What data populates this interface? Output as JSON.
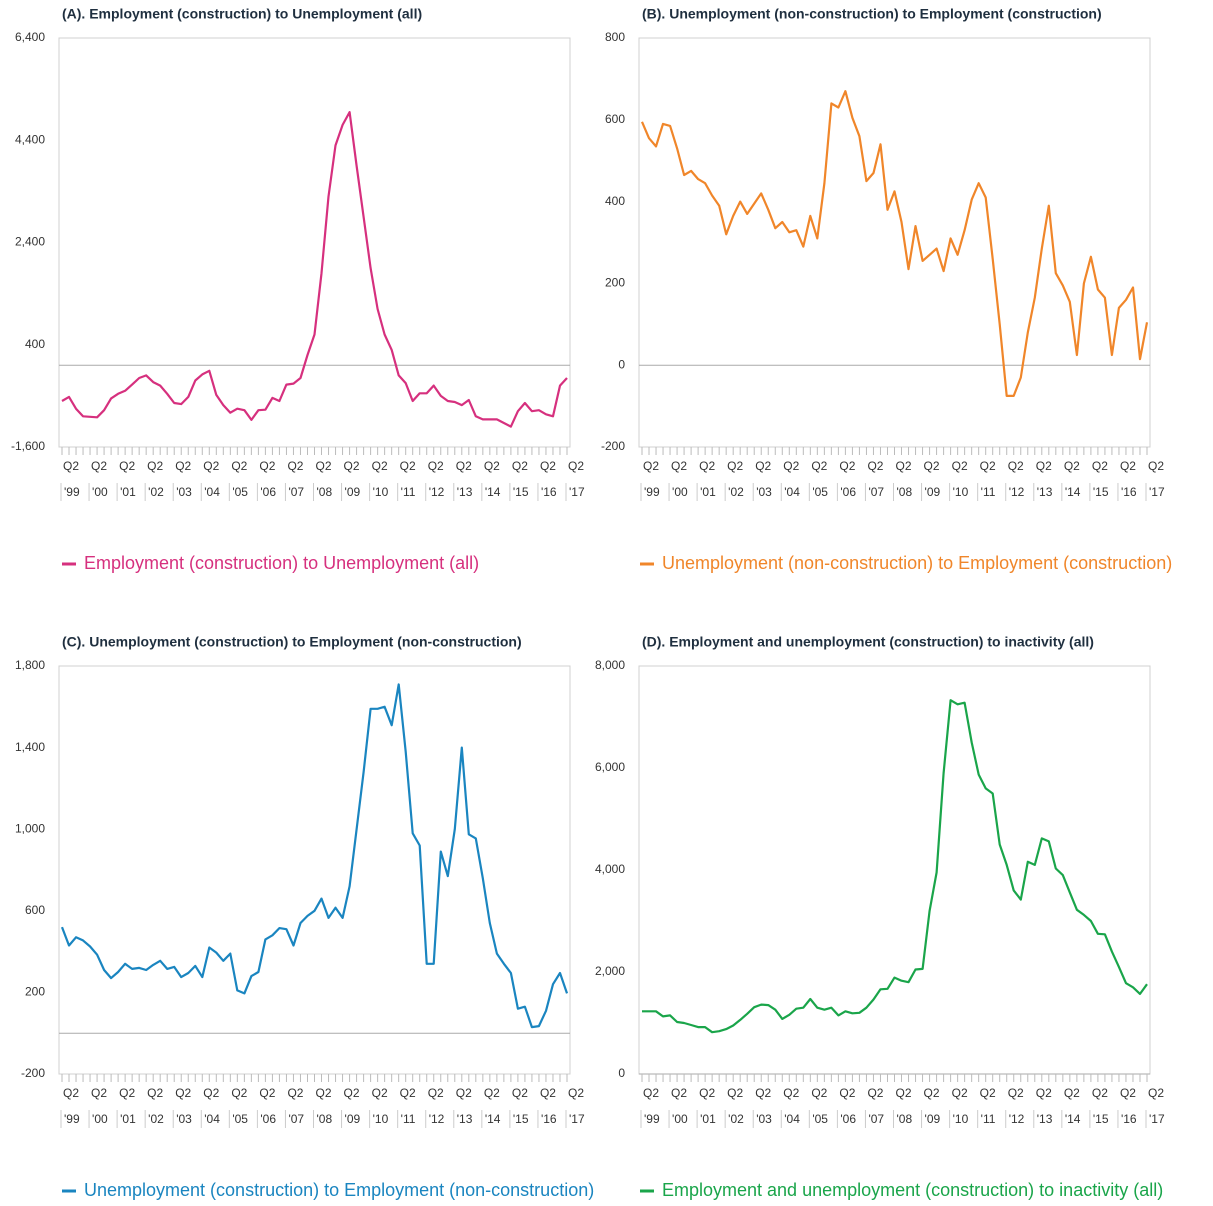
{
  "chart_data": [
    {
      "type": "line",
      "title": "(A). Employment (construction) to Unemployment (all)",
      "categories": [
        "Q2",
        null,
        null,
        null,
        "Q2",
        null,
        null,
        null,
        "Q2",
        null,
        null,
        null,
        "Q2",
        null,
        null,
        null,
        "Q2",
        null,
        null,
        null,
        "Q2",
        null,
        null,
        null,
        "Q2",
        null,
        null,
        null,
        "Q2",
        null,
        null,
        null,
        "Q2",
        null,
        null,
        null,
        "Q2",
        null,
        null,
        null,
        "Q2",
        null,
        null,
        null,
        "Q2",
        null,
        null,
        null,
        "Q2",
        null,
        null,
        null,
        "Q2",
        null,
        null,
        null,
        "Q2",
        null,
        null,
        null,
        "Q2",
        null,
        null,
        null,
        "Q2",
        null,
        null,
        null,
        "Q2",
        null,
        null,
        null,
        "Q2"
      ],
      "category_groups": [
        "'99",
        null,
        null,
        null,
        "'00",
        null,
        null,
        null,
        "'01",
        null,
        null,
        null,
        "'02",
        null,
        null,
        null,
        "'03",
        null,
        null,
        null,
        "'04",
        null,
        null,
        null,
        "'05",
        null,
        null,
        null,
        "'06",
        null,
        null,
        null,
        "'07",
        null,
        null,
        null,
        "'08",
        null,
        null,
        null,
        "'09",
        null,
        null,
        null,
        "'10",
        null,
        null,
        null,
        "'11",
        null,
        null,
        null,
        "'12",
        null,
        null,
        null,
        "'13",
        null,
        null,
        null,
        "'14",
        null,
        null,
        null,
        "'15",
        null,
        null,
        null,
        "'16",
        null,
        null,
        null,
        "'17"
      ],
      "series": [
        {
          "name": "Employment (construction) to Unemployment (all)",
          "color": "#d6307e",
          "values": [
            -700,
            -620,
            -850,
            -1000,
            -1010,
            -1020,
            -880,
            -650,
            -560,
            -500,
            -380,
            -250,
            -200,
            -330,
            -400,
            -560,
            -740,
            -760,
            -620,
            -300,
            -180,
            -110,
            -580,
            -780,
            -930,
            -850,
            -880,
            -1070,
            -880,
            -870,
            -640,
            -700,
            -380,
            -360,
            -250,
            200,
            600,
            1800,
            3300,
            4300,
            4700,
            4950,
            3900,
            2900,
            1900,
            1100,
            600,
            300,
            -200,
            -350,
            -700,
            -550,
            -550,
            -400,
            -600,
            -700,
            -720,
            -780,
            -680,
            -1000,
            -1060,
            -1060,
            -1060,
            -1130,
            -1200,
            -900,
            -740,
            -900,
            -880,
            -960,
            -1000,
            -400,
            -250
          ]
        }
      ],
      "ylim": [
        -1600,
        6400
      ],
      "yticks": [
        {
          "value": -1600,
          "label": "-1,600"
        },
        400,
        {
          "value": 2400,
          "label": "2,400"
        },
        {
          "value": 4400,
          "label": "4,400"
        },
        {
          "value": 6400,
          "label": "6,400"
        }
      ],
      "grid": false
    },
    {
      "type": "line",
      "title": "(B). Unemployment (non-construction) to Employment (construction)",
      "categories": [
        "Q2",
        null,
        null,
        null,
        "Q2",
        null,
        null,
        null,
        "Q2",
        null,
        null,
        null,
        "Q2",
        null,
        null,
        null,
        "Q2",
        null,
        null,
        null,
        "Q2",
        null,
        null,
        null,
        "Q2",
        null,
        null,
        null,
        "Q2",
        null,
        null,
        null,
        "Q2",
        null,
        null,
        null,
        "Q2",
        null,
        null,
        null,
        "Q2",
        null,
        null,
        null,
        "Q2",
        null,
        null,
        null,
        "Q2",
        null,
        null,
        null,
        "Q2",
        null,
        null,
        null,
        "Q2",
        null,
        null,
        null,
        "Q2",
        null,
        null,
        null,
        "Q2",
        null,
        null,
        null,
        "Q2",
        null,
        null,
        null,
        "Q2"
      ],
      "category_groups": [
        "'99",
        null,
        null,
        null,
        "'00",
        null,
        null,
        null,
        "'01",
        null,
        null,
        null,
        "'02",
        null,
        null,
        null,
        "'03",
        null,
        null,
        null,
        "'04",
        null,
        null,
        null,
        "'05",
        null,
        null,
        null,
        "'06",
        null,
        null,
        null,
        "'07",
        null,
        null,
        null,
        "'08",
        null,
        null,
        null,
        "'09",
        null,
        null,
        null,
        "'10",
        null,
        null,
        null,
        "'11",
        null,
        null,
        null,
        "'12",
        null,
        null,
        null,
        "'13",
        null,
        null,
        null,
        "'14",
        null,
        null,
        null,
        "'15",
        null,
        null,
        null,
        "'16",
        null,
        null,
        null,
        "'17"
      ],
      "series": [
        {
          "name": "Unemployment (non-construction) to Employment (construction)",
          "color": "#f0862a",
          "values": [
            595,
            555,
            535,
            590,
            585,
            530,
            465,
            475,
            455,
            445,
            415,
            390,
            320,
            365,
            400,
            370,
            395,
            420,
            380,
            335,
            350,
            325,
            330,
            290,
            365,
            310,
            445,
            640,
            630,
            670,
            605,
            560,
            450,
            470,
            540,
            380,
            425,
            350,
            235,
            340,
            255,
            270,
            285,
            230,
            310,
            270,
            330,
            405,
            445,
            410,
            260,
            100,
            -75,
            -75,
            -30,
            80,
            165,
            285,
            390,
            225,
            195,
            155,
            25,
            200,
            265,
            185,
            165,
            25,
            140,
            160,
            190,
            15,
            105
          ]
        }
      ],
      "ylim": [
        -200,
        800
      ],
      "yticks": [
        -200,
        0,
        200,
        400,
        600,
        800
      ],
      "grid": false
    },
    {
      "type": "line",
      "title": "(C). Unemployment (construction) to Employment (non-construction)",
      "categories": [
        "Q2",
        null,
        null,
        null,
        "Q2",
        null,
        null,
        null,
        "Q2",
        null,
        null,
        null,
        "Q2",
        null,
        null,
        null,
        "Q2",
        null,
        null,
        null,
        "Q2",
        null,
        null,
        null,
        "Q2",
        null,
        null,
        null,
        "Q2",
        null,
        null,
        null,
        "Q2",
        null,
        null,
        null,
        "Q2",
        null,
        null,
        null,
        "Q2",
        null,
        null,
        null,
        "Q2",
        null,
        null,
        null,
        "Q2",
        null,
        null,
        null,
        "Q2",
        null,
        null,
        null,
        "Q2",
        null,
        null,
        null,
        "Q2",
        null,
        null,
        null,
        "Q2",
        null,
        null,
        null,
        "Q2",
        null,
        null,
        null,
        "Q2"
      ],
      "category_groups": [
        "'99",
        null,
        null,
        null,
        "'00",
        null,
        null,
        null,
        "'01",
        null,
        null,
        null,
        "'02",
        null,
        null,
        null,
        "'03",
        null,
        null,
        null,
        "'04",
        null,
        null,
        null,
        "'05",
        null,
        null,
        null,
        "'06",
        null,
        null,
        null,
        "'07",
        null,
        null,
        null,
        "'08",
        null,
        null,
        null,
        "'09",
        null,
        null,
        null,
        "'10",
        null,
        null,
        null,
        "'11",
        null,
        null,
        null,
        "'12",
        null,
        null,
        null,
        "'13",
        null,
        null,
        null,
        "'14",
        null,
        null,
        null,
        "'15",
        null,
        null,
        null,
        "'16",
        null,
        null,
        null,
        "'17"
      ],
      "series": [
        {
          "name": "Unemployment (construction) to Employment (non-construction)",
          "color": "#1a85c0",
          "values": [
            520,
            430,
            470,
            455,
            425,
            385,
            310,
            270,
            300,
            340,
            315,
            320,
            310,
            335,
            355,
            315,
            325,
            275,
            295,
            330,
            275,
            420,
            395,
            355,
            390,
            210,
            195,
            280,
            300,
            460,
            480,
            515,
            510,
            430,
            540,
            575,
            600,
            660,
            565,
            615,
            565,
            720,
            1000,
            1280,
            1590,
            1590,
            1600,
            1510,
            1710,
            1380,
            980,
            920,
            340,
            340,
            890,
            770,
            1000,
            1400,
            975,
            955,
            760,
            540,
            390,
            340,
            295,
            120,
            130,
            30,
            35,
            110,
            240,
            295,
            195
          ]
        }
      ],
      "ylim": [
        -200,
        1800
      ],
      "yticks": [
        -200,
        200,
        600,
        {
          "value": 1000,
          "label": "1,000"
        },
        {
          "value": 1400,
          "label": "1,400"
        },
        {
          "value": 1800,
          "label": "1,800"
        }
      ],
      "grid": false
    },
    {
      "type": "line",
      "title": "(D). Employment and unemployment (construction) to inactivity (all)",
      "categories": [
        "Q2",
        null,
        null,
        null,
        "Q2",
        null,
        null,
        null,
        "Q2",
        null,
        null,
        null,
        "Q2",
        null,
        null,
        null,
        "Q2",
        null,
        null,
        null,
        "Q2",
        null,
        null,
        null,
        "Q2",
        null,
        null,
        null,
        "Q2",
        null,
        null,
        null,
        "Q2",
        null,
        null,
        null,
        "Q2",
        null,
        null,
        null,
        "Q2",
        null,
        null,
        null,
        "Q2",
        null,
        null,
        null,
        "Q2",
        null,
        null,
        null,
        "Q2",
        null,
        null,
        null,
        "Q2",
        null,
        null,
        null,
        "Q2",
        null,
        null,
        null,
        "Q2",
        null,
        null,
        null,
        "Q2",
        null,
        null,
        null,
        "Q2"
      ],
      "category_groups": [
        "'99",
        null,
        null,
        null,
        "'00",
        null,
        null,
        null,
        "'01",
        null,
        null,
        null,
        "'02",
        null,
        null,
        null,
        "'03",
        null,
        null,
        null,
        "'04",
        null,
        null,
        null,
        "'05",
        null,
        null,
        null,
        "'06",
        null,
        null,
        null,
        "'07",
        null,
        null,
        null,
        "'08",
        null,
        null,
        null,
        "'09",
        null,
        null,
        null,
        "'10",
        null,
        null,
        null,
        "'11",
        null,
        null,
        null,
        "'12",
        null,
        null,
        null,
        "'13",
        null,
        null,
        null,
        "'14",
        null,
        null,
        null,
        "'15",
        null,
        null,
        null,
        "'16",
        null,
        null,
        null,
        "'17"
      ],
      "series": [
        {
          "name": "Employment and unemployment (construction) to inactivity (all)",
          "color": "#1aa54a",
          "values": [
            1230,
            1230,
            1230,
            1130,
            1150,
            1020,
            1000,
            960,
            920,
            920,
            820,
            840,
            880,
            950,
            1060,
            1180,
            1310,
            1360,
            1350,
            1260,
            1080,
            1160,
            1280,
            1300,
            1470,
            1300,
            1260,
            1300,
            1150,
            1230,
            1190,
            1200,
            1300,
            1460,
            1660,
            1670,
            1890,
            1830,
            1800,
            2050,
            2060,
            3200,
            3950,
            5900,
            7330,
            7250,
            7280,
            6500,
            5870,
            5600,
            5500,
            4500,
            4100,
            3600,
            3420,
            4160,
            4100,
            4620,
            4560,
            4030,
            3900,
            3560,
            3220,
            3120,
            3000,
            2750,
            2740,
            2400,
            2100,
            1780,
            1700,
            1570,
            1760
          ]
        }
      ],
      "ylim": [
        0,
        8000
      ],
      "yticks": [
        0,
        {
          "value": 2000,
          "label": "2,000"
        },
        {
          "value": 4000,
          "label": "4,000"
        },
        {
          "value": 6000,
          "label": "6,000"
        },
        {
          "value": 8000,
          "label": "8,000"
        }
      ],
      "grid": false
    }
  ]
}
